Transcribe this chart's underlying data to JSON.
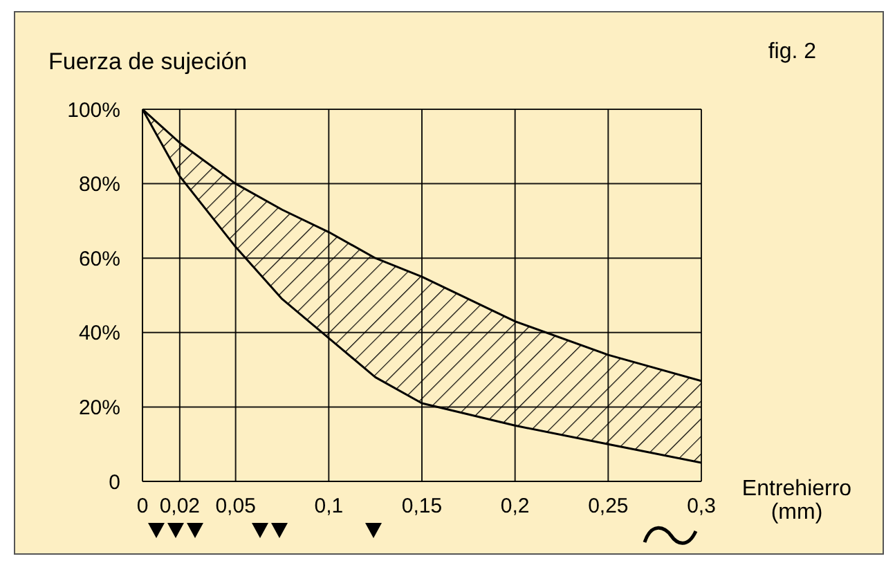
{
  "chart_data": {
    "type": "line",
    "title": "fig. 2",
    "ylabel": "Fuerza de sujeción",
    "xlabel": "Entrehierro\n(mm)",
    "x": [
      0,
      0.02,
      0.05,
      0.075,
      0.1,
      0.125,
      0.15,
      0.2,
      0.25,
      0.3
    ],
    "series": [
      {
        "color": "#000000",
        "values": [
          100,
          91,
          80,
          73,
          67,
          60,
          55,
          43,
          34,
          27
        ],
        "lower": [
          100,
          82,
          63,
          49,
          38.5,
          28,
          21,
          15,
          10,
          5
        ],
        "upper": [
          100,
          91,
          80,
          73,
          67,
          60,
          55,
          43,
          34,
          27
        ]
      },
      {
        "color": "#000000",
        "values": [
          100,
          82,
          63,
          49,
          38.5,
          28,
          21,
          15,
          10,
          5
        ]
      }
    ],
    "xlim": [
      0,
      0.3
    ],
    "xticks": [
      0,
      {
        "value": 0.02,
        "label": "0,02"
      },
      {
        "value": 0.05,
        "label": "0,05"
      },
      {
        "value": 0.1,
        "label": "0,1"
      },
      {
        "value": 0.15,
        "label": "0,15"
      },
      {
        "value": 0.2,
        "label": "0,2"
      },
      {
        "value": 0.25,
        "label": "0,25"
      },
      {
        "value": 0.3,
        "label": "0,3"
      }
    ],
    "ylim": [
      0,
      100
    ],
    "yticks": [
      0,
      {
        "value": 20,
        "label": "20%"
      },
      {
        "value": 40,
        "label": "40%"
      },
      {
        "value": 60,
        "label": "60%"
      },
      {
        "value": 80,
        "label": "80%"
      },
      {
        "value": 100,
        "label": "100%"
      }
    ],
    "grid": true,
    "marker": "none",
    "line_style": "solid"
  }
}
